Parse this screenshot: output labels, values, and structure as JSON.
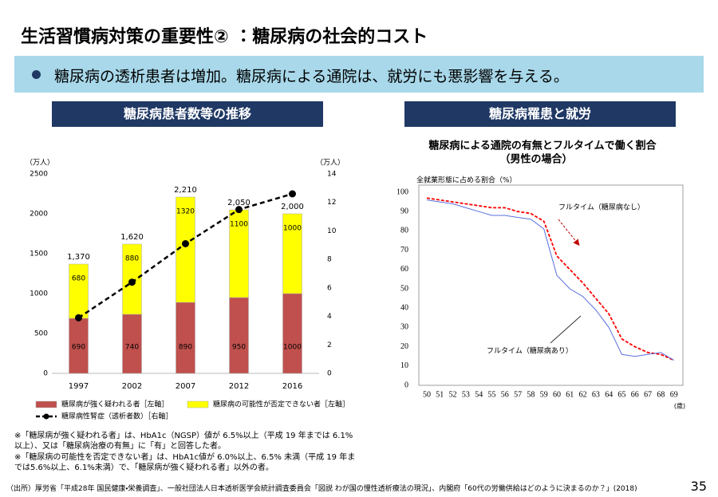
{
  "title": "生活習慣病対策の重要性② ：糖尿病の社会的コスト",
  "banner": "糖尿病の透析患者は増加。糖尿病による通院は、就労にも悪影響を与える。",
  "panels": [
    "糖尿病患者数等の推移",
    "糖尿病罹患と就労"
  ],
  "notes": [
    "※「糖尿病が強く疑われる者」は、HbA1c（NGSP）値が 6.5%以上（平成 19 年までは 6.1%以上）、又は「糖尿病治療の有無」に「有」と回答した者。",
    "※「糖尿病の可能性を否定できない者」は、HbA1c値が 6.0%以上、6.5% 未満（平成 19 年までは5.6%以上、6.1%未満）で、「糖尿病が強く疑われる者」以外の者。"
  ],
  "source": "（出所）厚労省「平成28年 国民健康・栄養調査」、一般社団法人日本透析医学会統計調査委員会「図説 わが国の慢性透析療法の現況」、内閣府「60代の労働供給はどのように決まるのか？」(2018)",
  "page_number": "35",
  "chart_data": [
    {
      "type": "bar",
      "y_label": "（万人）",
      "y2_label": "（万人）",
      "categories": [
        "1997",
        "2002",
        "2007",
        "2012",
        "2016"
      ],
      "series": [
        {
          "name": "糖尿病が強く疑われる者［左軸］",
          "color": "#c0504d",
          "values": [
            690,
            740,
            890,
            950,
            1000
          ]
        },
        {
          "name": "糖尿病の可能性が否定できない者［左軸］",
          "color": "#ffff00",
          "values": [
            680,
            880,
            1320,
            1100,
            1000
          ]
        },
        {
          "name": "糖尿病性腎症（透析者数）［右軸］",
          "color": "#000000",
          "axis": "y2",
          "type": "line",
          "values": [
            3.9,
            6.4,
            9.1,
            11.5,
            12.6
          ]
        }
      ],
      "total_labels": [
        "1,370",
        "1,620",
        "2,210",
        "2,050",
        "2,000"
      ],
      "ylim": [
        0,
        2500
      ],
      "yticks": [
        0,
        500,
        1000,
        1500,
        2000,
        2500
      ],
      "y2lim": [
        0,
        14
      ],
      "y2ticks": [
        0,
        2,
        4,
        6,
        8,
        10,
        12,
        14
      ],
      "grid": false
    },
    {
      "type": "line",
      "title": "糖尿病による通院の有無とフルタイムで働く割合",
      "subtitle": "（男性の場合）",
      "y_label": "全就業形態に占める割合（%）",
      "x_label": "(歳)",
      "categories": [
        "50",
        "51",
        "52",
        "53",
        "54",
        "55",
        "56",
        "57",
        "58",
        "59",
        "60",
        "61",
        "62",
        "63",
        "64",
        "65",
        "66",
        "67",
        "68",
        "69"
      ],
      "series": [
        {
          "name": "フルタイム（糖尿病なし）",
          "color": "#ff0000",
          "dashed": true,
          "values": [
            97,
            96,
            95,
            94,
            93,
            92,
            92,
            90,
            89,
            85,
            67,
            60,
            53,
            45,
            37,
            24,
            20,
            17,
            16,
            13
          ]
        },
        {
          "name": "フルタイム（糖尿病あり）",
          "color": "#5b6fe0",
          "dashed": false,
          "values": [
            96,
            95,
            94,
            92,
            90,
            88,
            88,
            87,
            86,
            81,
            57,
            50,
            46,
            39,
            30,
            16,
            15,
            16,
            17,
            13
          ]
        }
      ],
      "ylim": [
        0,
        100
      ],
      "yticks": [
        0,
        10,
        20,
        30,
        40,
        50,
        60,
        70,
        80,
        90,
        100
      ],
      "grid": false
    }
  ]
}
